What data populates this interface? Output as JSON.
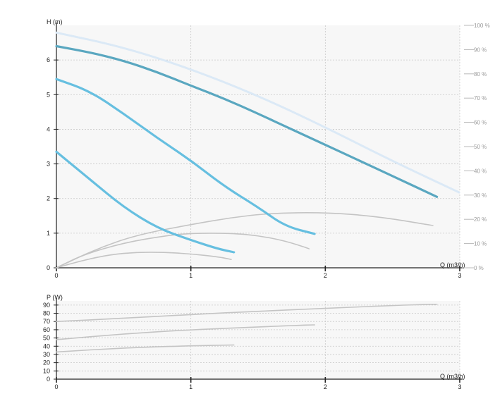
{
  "colors": {
    "curve": "#66bfe0",
    "curve_max": "#5aa7c0",
    "efficiency": "#dbe9f6",
    "secondary": "#c4c4c4",
    "grid": "#c8c8c8",
    "axis": "#222222",
    "pct_label": "#9a9a9a"
  },
  "chart_data": [
    {
      "type": "line",
      "title": "",
      "ylabel": "H (m)",
      "xlabel": "Q (m3/h)",
      "xlim": [
        0,
        3
      ],
      "ylim": [
        0,
        7
      ],
      "x_ticks": [
        "0",
        "1",
        "2",
        "3"
      ],
      "y_ticks": [
        "0",
        "1",
        "2",
        "3",
        "4",
        "5",
        "6"
      ],
      "grid": true,
      "right_axis": {
        "label_ticks": [
          "0 %",
          "10 %",
          "20 %",
          "30 %",
          "40 %",
          "50 %",
          "60 %",
          "70 %",
          "80 %",
          "90 %",
          "100 %"
        ],
        "ylim": [
          0,
          100
        ]
      },
      "series": [
        {
          "x": [
            0,
            0.25,
            0.5,
            0.75,
            1.0,
            1.25,
            1.5,
            1.75,
            2.0,
            2.25,
            2.5,
            2.83
          ],
          "values": [
            6.4,
            6.22,
            5.98,
            5.65,
            5.26,
            4.88,
            4.45,
            4.0,
            3.55,
            3.1,
            2.65,
            2.05
          ]
        },
        {
          "x": [
            0,
            0.25,
            0.5,
            0.75,
            1.0,
            1.25,
            1.5,
            1.7,
            1.92
          ],
          "values": [
            5.45,
            5.1,
            4.45,
            3.75,
            3.1,
            2.35,
            1.75,
            1.2,
            0.98
          ]
        },
        {
          "x": [
            0,
            0.25,
            0.5,
            0.75,
            1.0,
            1.2,
            1.32
          ],
          "values": [
            3.35,
            2.55,
            1.75,
            1.15,
            0.8,
            0.55,
            0.45
          ]
        },
        {
          "x": [
            0,
            0.5,
            1.0,
            1.5,
            2.0,
            2.5,
            3.0
          ],
          "values": [
            97,
            91,
            82,
            71,
            58,
            44,
            31
          ]
        },
        {
          "x": [
            0,
            0.3,
            0.6,
            1.0,
            1.3,
            1.6,
            2.0,
            2.4,
            2.8
          ],
          "values": [
            0,
            0.55,
            0.95,
            1.25,
            1.45,
            1.58,
            1.6,
            1.48,
            1.22
          ]
        },
        {
          "x": [
            0,
            0.2,
            0.5,
            0.8,
            1.0,
            1.3,
            1.5,
            1.7,
            1.88
          ],
          "values": [
            0,
            0.38,
            0.72,
            0.92,
            1.0,
            1.0,
            0.93,
            0.78,
            0.55
          ]
        },
        {
          "x": [
            0,
            0.2,
            0.4,
            0.6,
            0.8,
            1.0,
            1.2,
            1.3
          ],
          "values": [
            0,
            0.22,
            0.38,
            0.45,
            0.45,
            0.4,
            0.32,
            0.24
          ]
        }
      ]
    },
    {
      "type": "line",
      "title": "",
      "ylabel": "P (W)",
      "xlabel": "Q (m3/h)",
      "xlim": [
        0,
        3
      ],
      "ylim": [
        0,
        95
      ],
      "x_ticks": [
        "0",
        "1",
        "2",
        "3"
      ],
      "y_ticks": [
        "0",
        "10",
        "20",
        "30",
        "40",
        "50",
        "60",
        "70",
        "80",
        "90"
      ],
      "grid": true,
      "series": [
        {
          "x": [
            0,
            0.5,
            1.0,
            1.5,
            2.0,
            2.5,
            2.83
          ],
          "values": [
            70,
            74,
            78.5,
            82.5,
            86,
            89.5,
            91
          ]
        },
        {
          "x": [
            0,
            0.5,
            1.0,
            1.5,
            1.92
          ],
          "values": [
            48,
            55,
            60,
            63.5,
            66
          ]
        },
        {
          "x": [
            0,
            0.5,
            1.0,
            1.32
          ],
          "values": [
            33,
            38,
            40.5,
            41.5
          ]
        }
      ]
    }
  ]
}
